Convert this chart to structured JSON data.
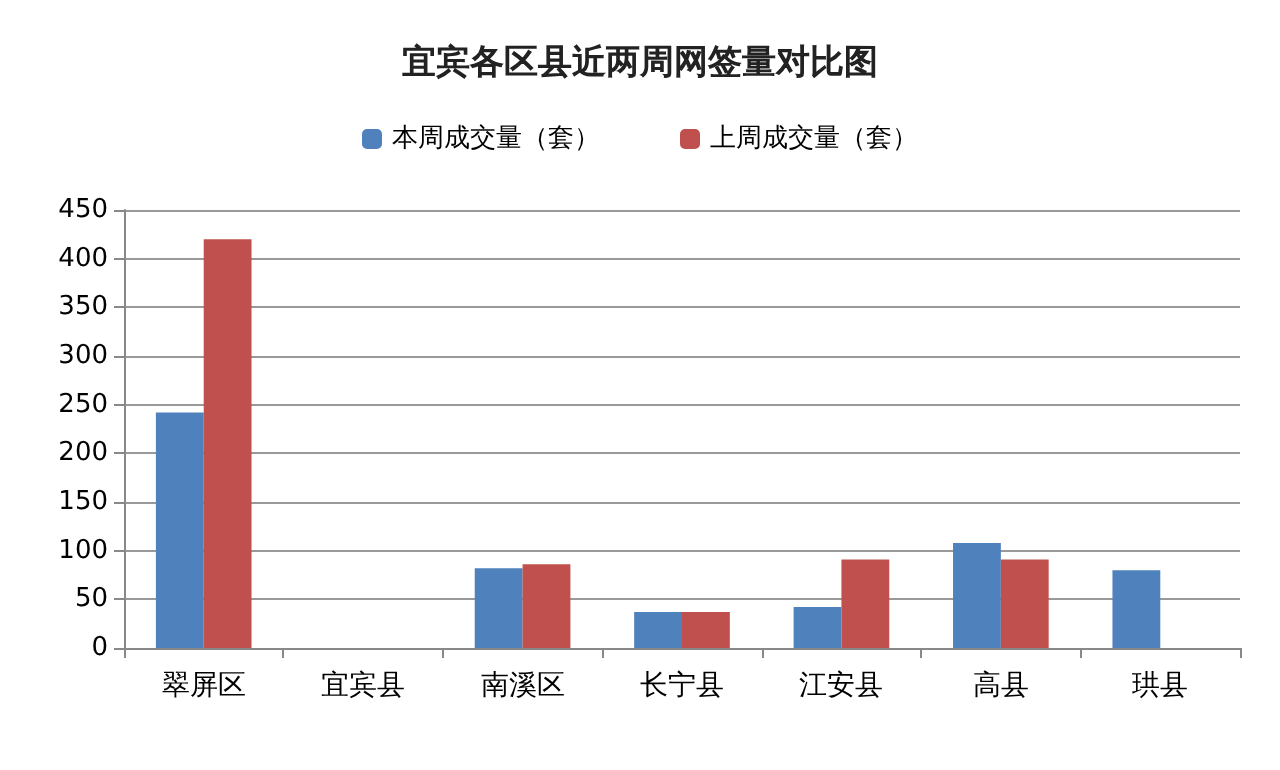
{
  "chart_data": {
    "type": "bar",
    "title": "宜宾各区县近两周网签量对比图",
    "categories": [
      "翠屏区",
      "宜宾县",
      "南溪区",
      "长宁县",
      "江安县",
      "高县",
      "珙县"
    ],
    "series": [
      {
        "name": "本周成交量（套）",
        "color": "#4f81bd",
        "values": [
          242,
          null,
          82,
          37,
          42,
          108,
          80
        ]
      },
      {
        "name": "上周成交量（套）",
        "color": "#c0504d",
        "values": [
          420,
          null,
          86,
          37,
          91,
          91,
          null
        ]
      }
    ],
    "ylim": [
      0,
      450
    ],
    "yticks": [
      0,
      50,
      100,
      150,
      200,
      250,
      300,
      350,
      400,
      450
    ],
    "grid": "y",
    "legend": "top"
  }
}
